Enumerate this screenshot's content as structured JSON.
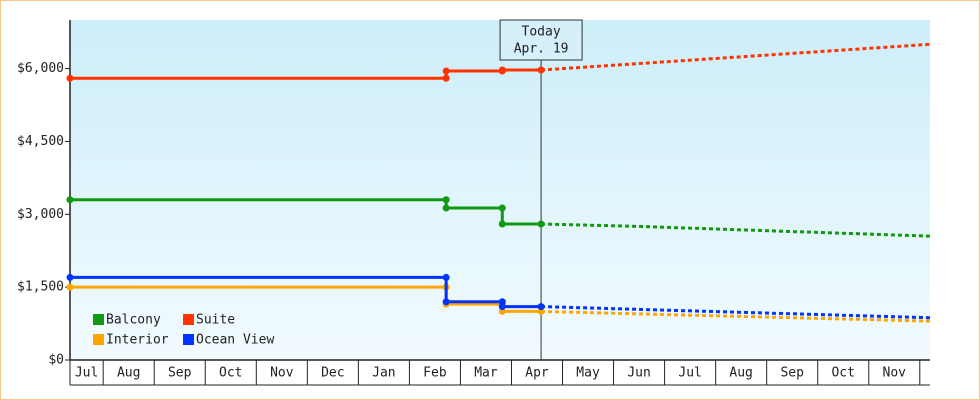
{
  "chart_data": {
    "type": "step-line",
    "xlim": [
      0.35,
      17.2
    ],
    "xticks": [
      1,
      2,
      3,
      4,
      5,
      6,
      7,
      8,
      9,
      10,
      11,
      12,
      13,
      14,
      15,
      16,
      17
    ],
    "x_labels": [
      "Jul",
      "Aug",
      "Sep",
      "Oct",
      "Nov",
      "Dec",
      "Jan",
      "Feb",
      "Mar",
      "Apr",
      "May",
      "Jun",
      "Jul",
      "Aug",
      "Sep",
      "Oct",
      "Nov"
    ],
    "ylim": [
      0,
      7000
    ],
    "yticks": [
      {
        "value": 0,
        "label": "$0"
      },
      {
        "value": 1500,
        "label": "$1,500"
      },
      {
        "value": 3000,
        "label": "$3,000"
      },
      {
        "value": 4500,
        "label": "$4,500"
      },
      {
        "value": 6000,
        "label": "$6,000"
      }
    ],
    "today": {
      "x": 9.58,
      "label": [
        "Today",
        "Apr. 19"
      ]
    },
    "legend": "lower left",
    "series": [
      {
        "name": "Balcony",
        "color": "#119911",
        "x": [
          0.35,
          7.72,
          7.72,
          8.82,
          8.82,
          9.58
        ],
        "values": [
          3300,
          3300,
          3130,
          3130,
          2800,
          2800
        ],
        "forecast_x": [
          9.58,
          11.5,
          17.2
        ],
        "forecast_values": [
          2800,
          2750,
          2550
        ]
      },
      {
        "name": "Suite",
        "color": "#ff3300",
        "x": [
          0.35,
          7.72,
          7.72,
          8.82,
          8.82,
          9.58
        ],
        "values": [
          5800,
          5800,
          5950,
          5950,
          5970,
          5970
        ],
        "forecast_x": [
          9.58,
          17.2
        ],
        "forecast_values": [
          5970,
          6500
        ]
      },
      {
        "name": "Interior",
        "color": "#ffa500",
        "x": [
          0.35,
          7.72,
          7.72,
          8.82,
          8.82,
          9.58
        ],
        "values": [
          1500,
          1500,
          1150,
          1150,
          1000,
          1000
        ],
        "forecast_x": [
          9.58,
          17.2
        ],
        "forecast_values": [
          1000,
          800
        ]
      },
      {
        "name": "Ocean View",
        "color": "#0033ff",
        "x": [
          0.35,
          7.72,
          7.72,
          8.82,
          8.82,
          9.58
        ],
        "values": [
          1700,
          1700,
          1200,
          1200,
          1100,
          1100
        ],
        "forecast_x": [
          9.58,
          17.2
        ],
        "forecast_values": [
          1100,
          870
        ]
      }
    ]
  }
}
